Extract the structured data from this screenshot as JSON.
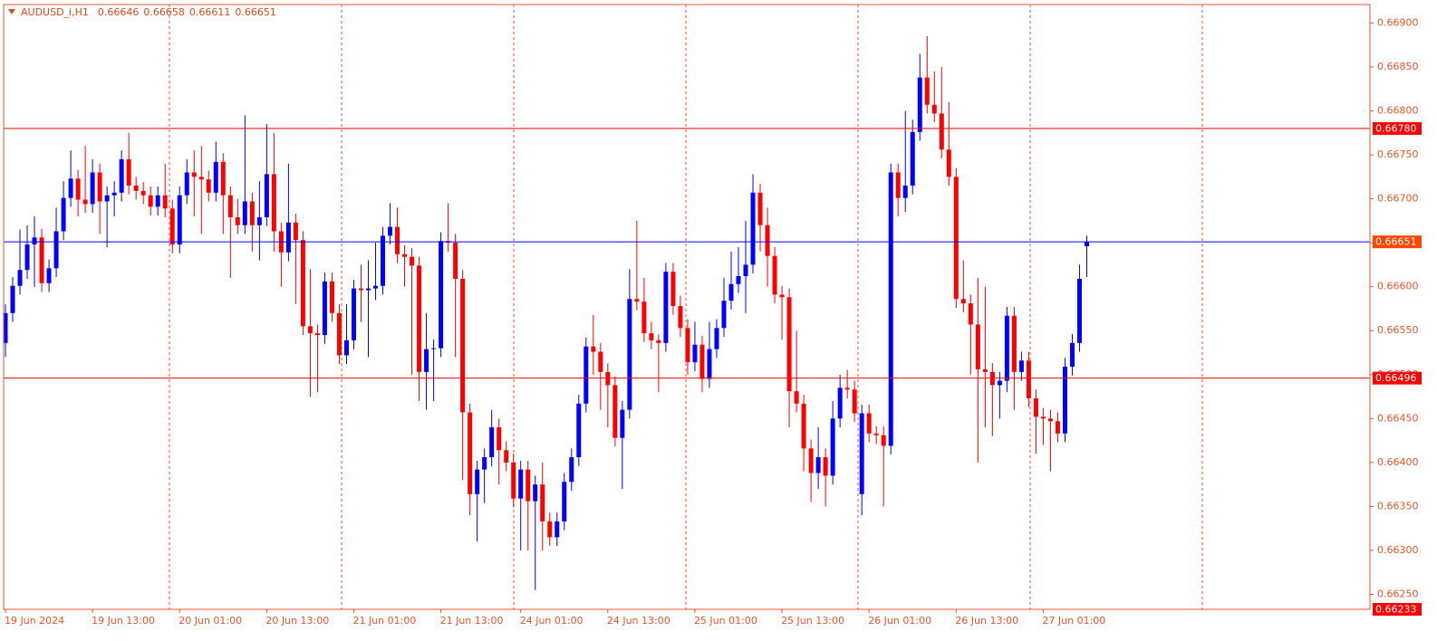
{
  "chart_data": {
    "type": "candlestick",
    "symbol": "AUDUSD_i,H1",
    "up_color": "#0000ff",
    "down_color": "#ff0000",
    "categories": [
      "19 Jun 2024",
      null,
      null,
      null,
      null,
      null,
      null,
      null,
      null,
      null,
      null,
      null,
      "19 Jun 13:00",
      null,
      null,
      null,
      null,
      null,
      null,
      null,
      null,
      null,
      null,
      null,
      "20 Jun 01:00",
      null,
      null,
      null,
      null,
      null,
      null,
      null,
      null,
      null,
      null,
      null,
      "20 Jun 13:00",
      null,
      null,
      null,
      null,
      null,
      null,
      null,
      null,
      null,
      null,
      null,
      "21 Jun 01:00",
      null,
      null,
      null,
      null,
      null,
      null,
      null,
      null,
      null,
      null,
      null,
      "21 Jun 13:00",
      null,
      null,
      null,
      null,
      null,
      null,
      null,
      null,
      null,
      null,
      "24 Jun 01:00",
      null,
      null,
      null,
      null,
      null,
      null,
      null,
      null,
      null,
      null,
      null,
      "24 Jun 13:00",
      null,
      null,
      null,
      null,
      null,
      null,
      null,
      null,
      null,
      null,
      null,
      "25 Jun 01:00",
      null,
      null,
      null,
      null,
      null,
      null,
      null,
      null,
      null,
      null,
      null,
      "25 Jun 13:00",
      null,
      null,
      null,
      null,
      null,
      null,
      null,
      null,
      null,
      null,
      null,
      "26 Jun 01:00",
      null,
      null,
      null,
      null,
      null,
      null,
      null,
      null,
      null,
      null,
      null,
      "26 Jun 13:00",
      null,
      null,
      null,
      null,
      null,
      null,
      null,
      null,
      null,
      null,
      null,
      "27 Jun 01:00",
      null,
      null,
      null,
      null,
      null,
      null
    ],
    "open": [
      0.66536,
      0.6657,
      0.66601,
      0.66619,
      0.66648,
      0.66656,
      0.66604,
      0.66621,
      0.66663,
      0.66701,
      0.66723,
      0.66699,
      0.66694,
      0.6673,
      0.66697,
      0.66704,
      0.66707,
      0.66745,
      0.66715,
      0.66709,
      0.66704,
      0.66691,
      0.66704,
      0.66689,
      0.66648,
      0.66704,
      0.6673,
      0.66725,
      0.66722,
      0.66707,
      0.66742,
      0.66704,
      0.66679,
      0.6667,
      0.66697,
      0.6667,
      0.66679,
      0.66728,
      0.66663,
      0.66639,
      0.66673,
      0.66653,
      0.66555,
      0.66547,
      0.66545,
      0.66606,
      0.6657,
      0.66522,
      0.66539,
      0.66598,
      0.66596,
      0.66598,
      0.66601,
      0.66658,
      0.66668,
      0.66637,
      0.66634,
      0.66624,
      0.66503,
      0.66529,
      0.6653,
      0.66652,
      0.6665,
      0.66609,
      0.66457,
      0.66364,
      0.66392,
      0.66406,
      0.6644,
      0.66414,
      0.664,
      0.66359,
      0.66392,
      0.66356,
      0.66375,
      0.66333,
      0.66315,
      0.66333,
      0.66378,
      0.66406,
      0.66467,
      0.66532,
      0.66526,
      0.66503,
      0.66488,
      0.66428,
      0.6646,
      0.66586,
      0.66583,
      0.66547,
      0.66539,
      0.66536,
      0.66617,
      0.66578,
      0.66553,
      0.66514,
      0.66534,
      0.66495,
      0.66529,
      0.66553,
      0.66584,
      0.66603,
      0.66612,
      0.66625,
      0.66707,
      0.6667,
      0.66635,
      0.66591,
      0.66588,
      0.66481,
      0.66467,
      0.66416,
      0.66388,
      0.66406,
      0.66385,
      0.6645,
      0.66485,
      0.66483,
      0.66364,
      0.66456,
      0.66433,
      0.66431,
      0.66419,
      0.6673,
      0.66701,
      0.66715,
      0.66776,
      0.66838,
      0.66807,
      0.66797,
      0.66756,
      0.66725,
      0.66586,
      0.66581,
      0.66557,
      0.66506,
      0.66503,
      0.66488,
      0.66493,
      0.66567,
      0.66503,
      0.66516,
      0.66473,
      0.66452,
      0.6645,
      0.66447,
      0.66433,
      0.66509,
      0.66536,
      0.66646
    ],
    "high": [
      0.6658,
      0.66611,
      0.66665,
      0.6667,
      0.6668,
      0.66666,
      0.66631,
      0.6669,
      0.6672,
      0.66755,
      0.66733,
      0.6676,
      0.66745,
      0.6674,
      0.66714,
      0.6672,
      0.66755,
      0.66775,
      0.66725,
      0.66719,
      0.66714,
      0.66714,
      0.6674,
      0.66699,
      0.66714,
      0.66745,
      0.66755,
      0.6676,
      0.66732,
      0.66765,
      0.66752,
      0.66714,
      0.667,
      0.66795,
      0.66707,
      0.6672,
      0.66785,
      0.66775,
      0.66673,
      0.6674,
      0.66683,
      0.66663,
      0.6662,
      0.66557,
      0.66616,
      0.66616,
      0.6658,
      0.6658,
      0.66608,
      0.66625,
      0.6663,
      0.6665,
      0.66668,
      0.66695,
      0.6669,
      0.66647,
      0.66644,
      0.66634,
      0.6657,
      0.6654,
      0.66662,
      0.66695,
      0.6666,
      0.66619,
      0.66467,
      0.66402,
      0.66416,
      0.6646,
      0.6645,
      0.66424,
      0.6641,
      0.66402,
      0.66402,
      0.66385,
      0.664,
      0.66343,
      0.66343,
      0.66388,
      0.66416,
      0.66477,
      0.66542,
      0.66568,
      0.66536,
      0.66513,
      0.66498,
      0.6647,
      0.6662,
      0.66675,
      0.6661,
      0.6656,
      0.66546,
      0.66627,
      0.66627,
      0.6659,
      0.66563,
      0.6656,
      0.66544,
      0.6656,
      0.66563,
      0.6661,
      0.6664,
      0.66645,
      0.66675,
      0.66728,
      0.66717,
      0.6669,
      0.66645,
      0.66601,
      0.66598,
      0.6655,
      0.66477,
      0.66426,
      0.6644,
      0.66416,
      0.6647,
      0.665,
      0.66505,
      0.66493,
      0.66466,
      0.66466,
      0.66441,
      0.66441,
      0.6674,
      0.6674,
      0.668,
      0.6679,
      0.66865,
      0.66885,
      0.66845,
      0.6685,
      0.6681,
      0.66735,
      0.6663,
      0.66591,
      0.6661,
      0.666,
      0.66513,
      0.66503,
      0.66577,
      0.66577,
      0.66526,
      0.66526,
      0.66483,
      0.66462,
      0.6646,
      0.66457,
      0.66519,
      0.66546,
      0.66625,
      0.66658
    ],
    "low": [
      0.6652,
      0.6656,
      0.66591,
      0.66609,
      0.666,
      0.66594,
      0.66594,
      0.66611,
      0.66653,
      0.66691,
      0.6668,
      0.66684,
      0.66684,
      0.6666,
      0.66645,
      0.6668,
      0.66697,
      0.66705,
      0.66699,
      0.66694,
      0.66681,
      0.66681,
      0.66679,
      0.66638,
      0.66638,
      0.66694,
      0.6668,
      0.6666,
      0.66697,
      0.66697,
      0.6666,
      0.6661,
      0.6666,
      0.6666,
      0.6664,
      0.6663,
      0.66669,
      0.6664,
      0.666,
      0.66629,
      0.6658,
      0.66545,
      0.66475,
      0.6648,
      0.66535,
      0.6656,
      0.66512,
      0.66512,
      0.66529,
      0.6656,
      0.6652,
      0.66585,
      0.66591,
      0.66648,
      0.66627,
      0.666,
      0.665,
      0.6647,
      0.6646,
      0.6647,
      0.6652,
      0.6664,
      0.6652,
      0.6638,
      0.6634,
      0.6631,
      0.66354,
      0.66396,
      0.66375,
      0.6639,
      0.66349,
      0.663,
      0.663,
      0.66255,
      0.663,
      0.66305,
      0.66305,
      0.66323,
      0.66368,
      0.66396,
      0.66457,
      0.665,
      0.6646,
      0.6644,
      0.66418,
      0.6637,
      0.6645,
      0.66573,
      0.66537,
      0.66529,
      0.6648,
      0.66526,
      0.66568,
      0.66543,
      0.665,
      0.66504,
      0.6648,
      0.66485,
      0.66519,
      0.66543,
      0.66574,
      0.66593,
      0.6657,
      0.66615,
      0.6664,
      0.666,
      0.66581,
      0.6654,
      0.6644,
      0.66457,
      0.6639,
      0.66355,
      0.6637,
      0.6635,
      0.66375,
      0.6644,
      0.66473,
      0.66446,
      0.6634,
      0.66423,
      0.66421,
      0.6635,
      0.66409,
      0.6668,
      0.66685,
      0.66705,
      0.66766,
      0.66797,
      0.66787,
      0.66746,
      0.66715,
      0.66576,
      0.66571,
      0.665,
      0.664,
      0.6644,
      0.6643,
      0.6645,
      0.6648,
      0.6646,
      0.66493,
      0.66463,
      0.6641,
      0.6642,
      0.6639,
      0.66423,
      0.66423,
      0.66499,
      0.66526,
      0.66611
    ],
    "close": [
      0.6657,
      0.66601,
      0.66619,
      0.66648,
      0.66656,
      0.66604,
      0.66621,
      0.66663,
      0.66701,
      0.66723,
      0.66699,
      0.66694,
      0.6673,
      0.66697,
      0.66704,
      0.66707,
      0.66745,
      0.66715,
      0.66709,
      0.66704,
      0.66691,
      0.66704,
      0.66689,
      0.66648,
      0.66704,
      0.6673,
      0.66725,
      0.66722,
      0.66707,
      0.66742,
      0.66704,
      0.66679,
      0.6667,
      0.66697,
      0.6667,
      0.66679,
      0.66728,
      0.66663,
      0.66639,
      0.66673,
      0.66653,
      0.66555,
      0.66547,
      0.66545,
      0.66606,
      0.6657,
      0.66522,
      0.66539,
      0.66598,
      0.66596,
      0.66598,
      0.66601,
      0.66658,
      0.66668,
      0.66637,
      0.66634,
      0.66624,
      0.66503,
      0.66529,
      0.6653,
      0.66652,
      0.6665,
      0.66609,
      0.66457,
      0.66364,
      0.66392,
      0.66406,
      0.6644,
      0.66414,
      0.664,
      0.66359,
      0.66392,
      0.66356,
      0.66375,
      0.66333,
      0.66315,
      0.66333,
      0.66378,
      0.66406,
      0.66467,
      0.66532,
      0.66526,
      0.66503,
      0.66488,
      0.66428,
      0.6646,
      0.66586,
      0.66583,
      0.66547,
      0.66539,
      0.66536,
      0.66617,
      0.66578,
      0.66553,
      0.66514,
      0.66534,
      0.66495,
      0.66529,
      0.66553,
      0.66584,
      0.66603,
      0.66612,
      0.66625,
      0.66707,
      0.6667,
      0.66635,
      0.66591,
      0.66588,
      0.66481,
      0.66467,
      0.66416,
      0.66388,
      0.66406,
      0.66385,
      0.6645,
      0.66485,
      0.66483,
      0.66456,
      0.66456,
      0.66433,
      0.66431,
      0.66419,
      0.6673,
      0.66701,
      0.66715,
      0.66776,
      0.66838,
      0.66807,
      0.66797,
      0.66756,
      0.66725,
      0.66586,
      0.66581,
      0.66557,
      0.66506,
      0.66503,
      0.66488,
      0.66493,
      0.66567,
      0.66503,
      0.66516,
      0.66473,
      0.66452,
      0.6645,
      0.66447,
      0.66433,
      0.66509,
      0.66536,
      0.66609,
      0.66651
    ],
    "ylim": [
      0.66233,
      0.66921
    ],
    "yticks": [
      {
        "value": 0.669,
        "label": "0.66900"
      },
      {
        "value": 0.6685,
        "label": "0.66850"
      },
      {
        "value": 0.668,
        "label": "0.66800"
      },
      {
        "value": 0.6675,
        "label": "0.66750"
      },
      {
        "value": 0.667,
        "label": "0.66700"
      },
      {
        "value": 0.6665,
        "label": "0.66650"
      },
      {
        "value": 0.666,
        "label": "0.66600"
      },
      {
        "value": 0.6655,
        "label": "0.66550"
      },
      {
        "value": 0.665,
        "label": "0.66500"
      },
      {
        "value": 0.6645,
        "label": "0.66450"
      },
      {
        "value": 0.664,
        "label": "0.66400"
      },
      {
        "value": 0.6635,
        "label": "0.66350"
      },
      {
        "value": 0.663,
        "label": "0.66300"
      },
      {
        "value": 0.6625,
        "label": "0.66250"
      }
    ],
    "levels": [
      {
        "value": 0.6678,
        "label": "0.66780",
        "color": "#ff0000",
        "box": "#ff0000",
        "line": true
      },
      {
        "value": 0.66651,
        "label": "0.66651",
        "color": "#0000ff",
        "box": "#ff4500",
        "line": true
      },
      {
        "value": 0.66496,
        "label": "0.66496",
        "color": "#ff0000",
        "box": "#ff0000",
        "line": true
      },
      {
        "value": 0.66233,
        "label": "0.66233",
        "color": "#ff0000",
        "box": "#ff0000",
        "line": false
      }
    ]
  }
}
